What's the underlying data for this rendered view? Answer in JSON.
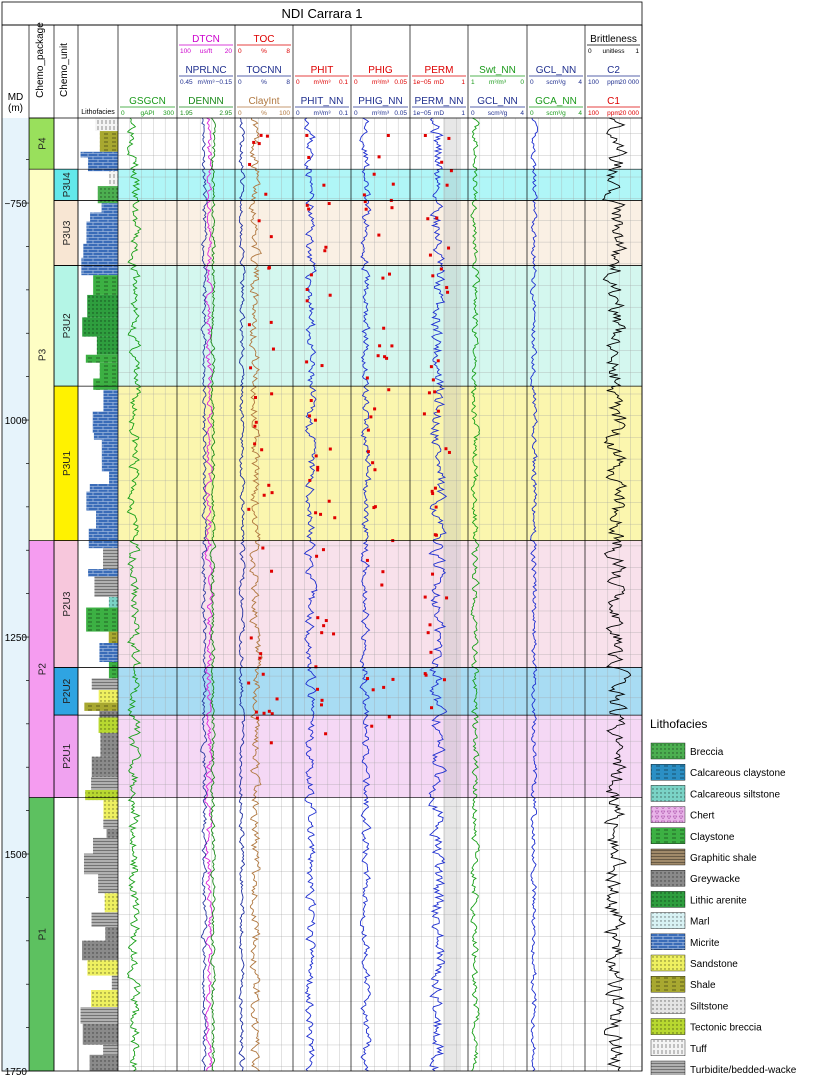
{
  "chart_data": {
    "type": "well-log",
    "title": "NDI Carrara 1",
    "depth_axis": {
      "title": "MD (m)",
      "ticks": [
        750,
        1000,
        1250,
        1500,
        1750
      ],
      "range": [
        652,
        1750
      ]
    },
    "track_titles": {
      "chemo_package": "Chemo_package",
      "chemo_unit": "Chemo_unit",
      "lithofacies": "Lithofacies"
    },
    "chemo_packages": [
      {
        "name": "P4",
        "top": 652,
        "base": 711,
        "color": "#99e05c"
      },
      {
        "name": "P3",
        "top": 711,
        "base": 1139,
        "color": "#fefec4"
      },
      {
        "name": "P2",
        "top": 1139,
        "base": 1435,
        "color": "#f59cf0"
      },
      {
        "name": "P1",
        "top": 1435,
        "base": 1750,
        "color": "#5dc160"
      }
    ],
    "chemo_units": [
      {
        "name": "P3U4",
        "top": 711,
        "base": 747,
        "color": "#63e8ea",
        "band": "#b0f6f7"
      },
      {
        "name": "P3U3",
        "top": 747,
        "base": 822,
        "color": "#f8e6d3",
        "band": "#faf0e4"
      },
      {
        "name": "P3U2",
        "top": 822,
        "base": 961,
        "color": "#b4f5e6",
        "band": "#d4f7ef"
      },
      {
        "name": "P3U1",
        "top": 961,
        "base": 1139,
        "color": "#fff200",
        "band": "#fbf6ae"
      },
      {
        "name": "P2U3",
        "top": 1139,
        "base": 1285,
        "color": "#f7c7dc",
        "band": "#f8e1eb"
      },
      {
        "name": "P2U2",
        "top": 1285,
        "base": 1340,
        "color": "#2fa4e2",
        "band": "#a8dcf3"
      },
      {
        "name": "P2U1",
        "top": 1340,
        "base": 1435,
        "color": "#f0a2f0",
        "band": "#f5d8f5"
      }
    ],
    "tracks": [
      {
        "id": "gr",
        "headers": [
          {
            "name": "GSGCN",
            "color": "#1a9a1a",
            "scale": [
              "0",
              "gAPI",
              "300"
            ]
          }
        ],
        "curves": [
          {
            "color": "#1aa01a",
            "base": 0.28,
            "amp": 0.16,
            "seed": 3
          }
        ]
      },
      {
        "id": "den",
        "headers": [
          {
            "name": "DTCN",
            "color": "#cc00cc",
            "scale": [
              "100",
              "us/ft",
              "20"
            ]
          },
          {
            "name": "NPRLNC",
            "color": "#1f2f8f",
            "scale": [
              "0.45",
              "m³/m³",
              "−0.15"
            ]
          },
          {
            "name": "DENNN",
            "color": "#1a8a1a",
            "scale": [
              "1.95",
              "",
              "2.95"
            ]
          }
        ],
        "curves": [
          {
            "color": "#dd22dd",
            "base": 0.55,
            "amp": 0.09,
            "seed": 7
          },
          {
            "color": "#2a3aa0",
            "base": 0.47,
            "amp": 0.07,
            "seed": 11
          },
          {
            "color": "#1a8a1a",
            "base": 0.62,
            "amp": 0.06,
            "seed": 13
          }
        ]
      },
      {
        "id": "toc",
        "headers": [
          {
            "name": "TOC",
            "color": "#dd0000",
            "scale": [
              "0",
              "%",
              "8"
            ]
          },
          {
            "name": "TOCNN",
            "color": "#1f2f8f",
            "scale": [
              "0",
              "%",
              "8"
            ]
          },
          {
            "name": "ClayInt",
            "color": "#b07840",
            "scale": [
              "0",
              "%",
              "100"
            ]
          }
        ],
        "curves": [
          {
            "color": "#b07840",
            "base": 0.35,
            "amp": 0.14,
            "seed": 17
          },
          {
            "color": "#1f2fa0",
            "base": 0.12,
            "amp": 0.07,
            "seed": 19
          }
        ]
      },
      {
        "id": "phit",
        "headers": [
          {
            "name": "PHIT",
            "color": "#dd0000",
            "scale": [
              "0",
              "m³/m³",
              "0.1"
            ]
          },
          {
            "name": "PHIT_NN",
            "color": "#1f2f8f",
            "scale": [
              "0",
              "m³/m³",
              "0.1"
            ]
          }
        ],
        "curves": [
          {
            "color": "#1f2fd0",
            "base": 0.3,
            "amp": 0.14,
            "seed": 23
          }
        ]
      },
      {
        "id": "phig",
        "headers": [
          {
            "name": "PHIG",
            "color": "#dd0000",
            "scale": [
              "0",
              "m³/m³",
              "0.05"
            ]
          },
          {
            "name": "PHIG_NN",
            "color": "#1f2f8f",
            "scale": [
              "0",
              "m³/m³",
              "0.05"
            ]
          }
        ],
        "curves": [
          {
            "color": "#1f2fd0",
            "base": 0.25,
            "amp": 0.12,
            "seed": 29
          }
        ]
      },
      {
        "id": "perm",
        "headers": [
          {
            "name": "PERM",
            "color": "#dd0000",
            "scale": [
              "1e−05",
              "mD",
              "1"
            ]
          },
          {
            "name": "PERM_NN",
            "color": "#1f2f8f",
            "scale": [
              "1e−05",
              "mD",
              "1"
            ]
          }
        ],
        "curves": [
          {
            "color": "#1f2fd0",
            "base": 0.48,
            "amp": 0.2,
            "seed": 31
          }
        ]
      },
      {
        "id": "sw",
        "headers": [
          {
            "name": "Swt_NN",
            "color": "#1a9a1a",
            "scale": [
              "1",
              "m³/m³",
              "0"
            ]
          },
          {
            "name": "GCL_NN",
            "color": "#1f2f8f",
            "scale": [
              "0",
              "scm³/g",
              "4"
            ]
          }
        ],
        "curves": [
          {
            "color": "#1aa01a",
            "base": 0.12,
            "amp": 0.1,
            "seed": 37
          }
        ]
      },
      {
        "id": "gc",
        "headers": [
          {
            "name": "GCL_NN",
            "color": "#1f2f8f",
            "scale": [
              "0",
              "scm³/g",
              "4"
            ]
          },
          {
            "name": "GCA_NN",
            "color": "#1a9a1a",
            "scale": [
              "0",
              "scm³/g",
              "4"
            ]
          }
        ],
        "curves": [
          {
            "color": "#1f2fd0",
            "base": 0.12,
            "amp": 0.08,
            "seed": 41
          }
        ]
      },
      {
        "id": "brit",
        "headers": [
          {
            "name": "Brittleness",
            "color": "#000000",
            "scale": [
              "0",
              "unitless",
              "1"
            ]
          },
          {
            "name": "C2",
            "color": "#1f2f8f",
            "scale": [
              "100",
              "ppm",
              "20 000"
            ]
          },
          {
            "name": "C1",
            "color": "#dd0000",
            "scale": [
              "100",
              "ppm",
              "20 000"
            ]
          }
        ],
        "curves": [
          {
            "color": "#000000",
            "base": 0.55,
            "amp": 0.3,
            "seed": 43
          }
        ]
      }
    ],
    "lithofacies_legend": {
      "title": "Lithofacies",
      "entries": [
        {
          "name": "Breccia",
          "color": "#4caf50",
          "pattern": "dots"
        },
        {
          "name": "Calcareous claystone",
          "color": "#2b8fc4",
          "pattern": "dash"
        },
        {
          "name": "Calcareous siltstone",
          "color": "#7ad3c6",
          "pattern": "dots"
        },
        {
          "name": "Chert",
          "color": "#e8b4e8",
          "pattern": "tri"
        },
        {
          "name": "Claystone",
          "color": "#3cb043",
          "pattern": "dash"
        },
        {
          "name": "Graphitic shale",
          "color": "#a08a6a",
          "pattern": "lines"
        },
        {
          "name": "Greywacke",
          "color": "#8a8a8a",
          "pattern": "dots"
        },
        {
          "name": "Lithic arenite",
          "color": "#2e9e3e",
          "pattern": "dots"
        },
        {
          "name": "Marl",
          "color": "#d8f2f4",
          "pattern": "dots"
        },
        {
          "name": "Micrite",
          "color": "#3a6cb8",
          "pattern": "brick"
        },
        {
          "name": "Sandstone",
          "color": "#eef060",
          "pattern": "dots"
        },
        {
          "name": "Shale",
          "color": "#a8a830",
          "pattern": "dash"
        },
        {
          "name": "Siltstone",
          "color": "#e4e4e4",
          "pattern": "dots"
        },
        {
          "name": "Tectonic breccia",
          "color": "#b8d830",
          "pattern": "dots"
        },
        {
          "name": "Tuff",
          "color": "#f4f4f4",
          "pattern": "vlines"
        },
        {
          "name": "Turbidite/bedded-wacke",
          "color": "#b0b0b0",
          "pattern": "lines"
        }
      ]
    }
  }
}
